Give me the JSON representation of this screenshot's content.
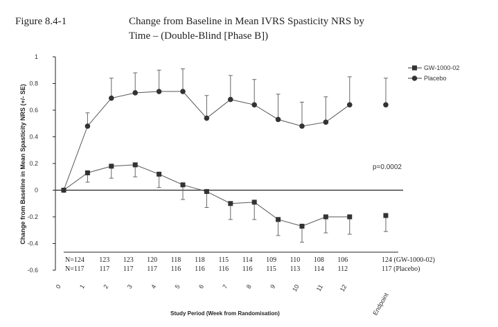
{
  "figure_label": "Figure 8.4-1",
  "title_line1": "Change from Baseline in Mean IVRS Spasticity NRS by",
  "title_line2": "Time – (Double-Blind [Phase B])",
  "chart_data": {
    "type": "line",
    "ylabel": "Change from Baseline in Mean Spasticity NRS (+/- SE)",
    "xlabel": "Study Period (Week from Randomisation)",
    "ylim": [
      -0.6,
      1
    ],
    "yticks": [
      "1",
      "0.8",
      "0.6",
      "0.4",
      "0.2",
      "0",
      "-0.2",
      "-0.4",
      "-0.6"
    ],
    "ytick_values": [
      1,
      0.8,
      0.6,
      0.4,
      0.2,
      0,
      -0.2,
      -0.4,
      -0.6
    ],
    "categories": [
      "0",
      "1",
      "2",
      "3",
      "4",
      "5",
      "6",
      "7",
      "8",
      "9",
      "10",
      "11",
      "12",
      "Endpoint"
    ],
    "legend_position": "top-right",
    "annotation": "p=0.0002",
    "series": [
      {
        "name": "GW-1000-02",
        "marker": "square",
        "color": "#333333",
        "values": [
          0,
          0.13,
          0.18,
          0.19,
          0.12,
          0.04,
          -0.01,
          -0.1,
          -0.09,
          -0.22,
          -0.27,
          -0.2,
          -0.2,
          -0.19
        ],
        "error_low": [
          0,
          0.06,
          0.09,
          0.1,
          0.02,
          -0.07,
          -0.13,
          -0.22,
          -0.22,
          -0.34,
          -0.39,
          -0.32,
          -0.33,
          -0.31
        ],
        "n": [
          "N=124",
          "123",
          "123",
          "120",
          "118",
          "118",
          "115",
          "114",
          "109",
          "110",
          "108",
          "106",
          "",
          "124 (GW-1000-02)"
        ]
      },
      {
        "name": "Placebo",
        "marker": "circle",
        "color": "#333333",
        "values": [
          0,
          0.48,
          0.69,
          0.73,
          0.74,
          0.74,
          0.54,
          0.68,
          0.64,
          0.53,
          0.48,
          0.51,
          0.64,
          0.64
        ],
        "error_high": [
          0,
          0.58,
          0.84,
          0.88,
          0.9,
          0.91,
          0.71,
          0.86,
          0.83,
          0.72,
          0.66,
          0.7,
          0.85,
          0.84
        ],
        "n": [
          "N=117",
          "117",
          "117",
          "117",
          "116",
          "116",
          "116",
          "116",
          "115",
          "113",
          "114",
          "112",
          "",
          "117 (Placebo)"
        ]
      }
    ]
  }
}
